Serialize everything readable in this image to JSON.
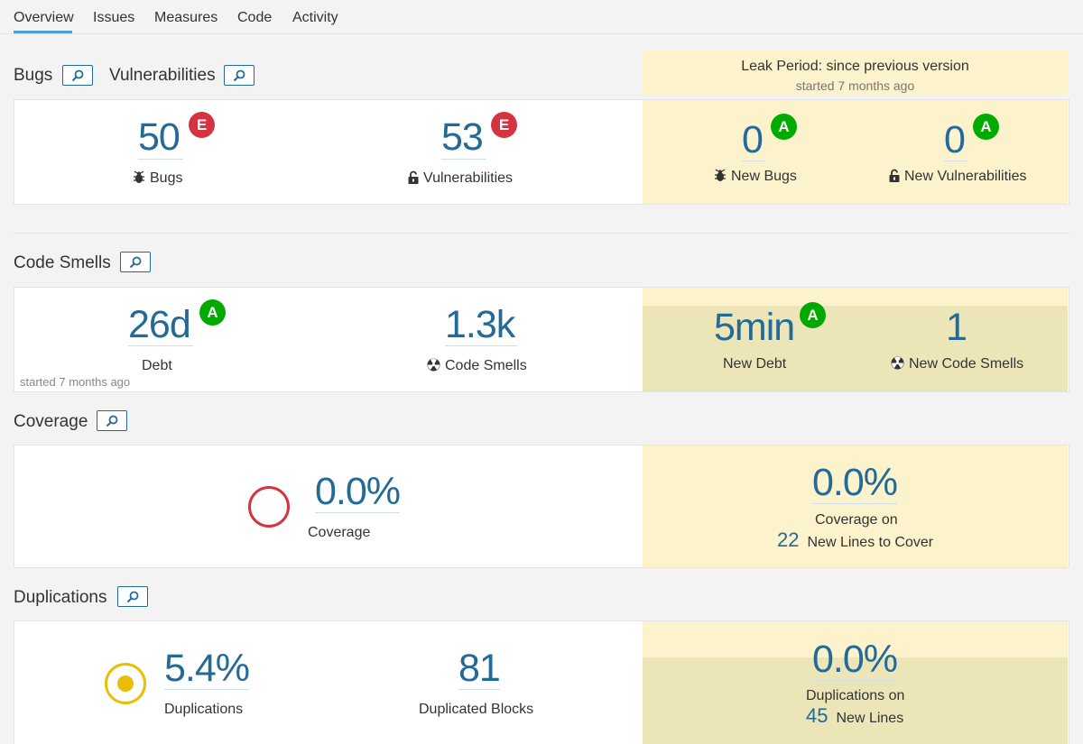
{
  "tabs": [
    {
      "label": "Overview"
    },
    {
      "label": "Issues"
    },
    {
      "label": "Measures"
    },
    {
      "label": "Code"
    },
    {
      "label": "Activity"
    }
  ],
  "leak": {
    "title": "Leak Period: since previous version",
    "subtitle": "started 7 months ago"
  },
  "reliability": {
    "bugs_title": "Bugs",
    "vuln_title": "Vulnerabilities",
    "bugs": {
      "value": "50",
      "rating": "E",
      "label": "Bugs"
    },
    "vulnerabilities": {
      "value": "53",
      "rating": "E",
      "label": "Vulnerabilities"
    },
    "new_bugs": {
      "value": "0",
      "rating": "A",
      "label": "New Bugs"
    },
    "new_vulnerabilities": {
      "value": "0",
      "rating": "A",
      "label": "New Vulnerabilities"
    }
  },
  "code_smells": {
    "title": "Code Smells",
    "debt": {
      "value": "26d",
      "rating": "A",
      "label": "Debt",
      "note": "started 7 months ago"
    },
    "smells": {
      "value": "1.3k",
      "label": "Code Smells"
    },
    "new_debt": {
      "value": "5min",
      "rating": "A",
      "label": "New Debt"
    },
    "new_smells": {
      "value": "1",
      "label": "New Code Smells"
    }
  },
  "coverage": {
    "title": "Coverage",
    "value": "0.0%",
    "label": "Coverage",
    "new_value": "0.0%",
    "new_label": "Coverage on",
    "new_lines_count": "22",
    "new_lines_label": "New Lines to Cover"
  },
  "duplications": {
    "title": "Duplications",
    "value": "5.4%",
    "label": "Duplications",
    "blocks": "81",
    "blocks_label": "Duplicated Blocks",
    "new_value": "0.0%",
    "new_label": "Duplications on",
    "new_lines_count": "45",
    "new_lines_label": "New Lines"
  },
  "colors": {
    "accent": "#236a97",
    "tab_active": "#4b9fd5",
    "leak_bg": "#fcf2cc",
    "rating_e": "#d4333f",
    "rating_a": "#00aa00",
    "coverage_ring": "#d4333f",
    "duplication_ring": "#eabe06"
  },
  "icons": {
    "search": "search-icon",
    "bug": "bug-icon",
    "lock": "lock-icon",
    "radiation": "code-smell-icon"
  }
}
